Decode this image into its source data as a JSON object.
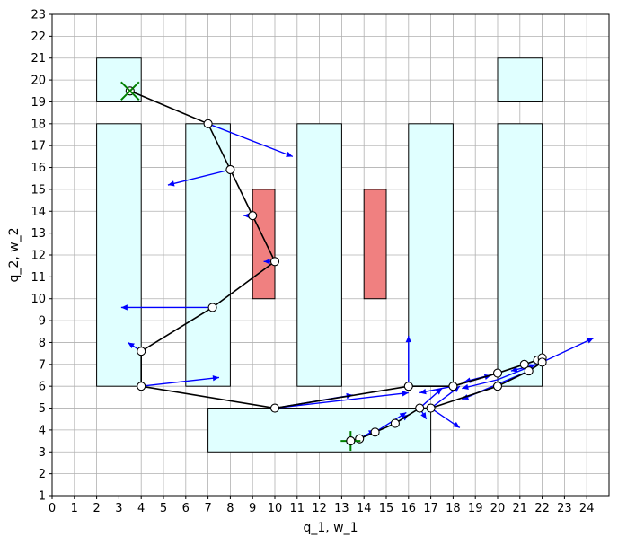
{
  "chart_data": {
    "type": "scatter",
    "title": "",
    "xlabel": "q_1, w_1",
    "ylabel": "q_2, w_2",
    "xlim": [
      0,
      25
    ],
    "ylim": [
      1,
      23
    ],
    "xticks": [
      0,
      1,
      2,
      3,
      4,
      5,
      6,
      7,
      8,
      9,
      10,
      11,
      12,
      13,
      14,
      15,
      16,
      17,
      18,
      19,
      20,
      21,
      22,
      23,
      24
    ],
    "yticks": [
      1,
      2,
      3,
      4,
      5,
      6,
      7,
      8,
      9,
      10,
      11,
      12,
      13,
      14,
      15,
      16,
      17,
      18,
      19,
      20,
      21,
      22,
      23
    ],
    "grid": true,
    "colors": {
      "region": "#e0ffff",
      "obstacle": "#f08080",
      "path": "#000000",
      "arrow": "#0000ff",
      "marker": "#008000"
    },
    "regions": [
      {
        "x": [
          2,
          4
        ],
        "y": [
          19,
          21
        ]
      },
      {
        "x": [
          2,
          4
        ],
        "y": [
          6,
          18
        ]
      },
      {
        "x": [
          6,
          8
        ],
        "y": [
          6,
          18
        ]
      },
      {
        "x": [
          11,
          13
        ],
        "y": [
          6,
          18
        ]
      },
      {
        "x": [
          16,
          18
        ],
        "y": [
          6,
          18
        ]
      },
      {
        "x": [
          20,
          22
        ],
        "y": [
          19,
          21
        ]
      },
      {
        "x": [
          20,
          22
        ],
        "y": [
          6,
          18
        ]
      },
      {
        "x": [
          7,
          17
        ],
        "y": [
          3,
          5
        ]
      }
    ],
    "obstacles": [
      {
        "x": [
          9,
          10
        ],
        "y": [
          10,
          15
        ]
      },
      {
        "x": [
          14,
          15
        ],
        "y": [
          10,
          15
        ]
      }
    ],
    "path": [
      [
        3.5,
        19.5
      ],
      [
        7,
        18
      ],
      [
        8,
        15.9
      ],
      [
        9,
        13.8
      ],
      [
        10,
        11.7
      ],
      [
        7.2,
        9.6
      ],
      [
        4,
        7.6
      ],
      [
        4,
        6
      ],
      [
        10,
        5
      ],
      [
        16,
        6
      ],
      [
        18,
        6
      ],
      [
        20,
        6.6
      ],
      [
        21.2,
        7
      ],
      [
        21.8,
        7.2
      ],
      [
        22,
        7.3
      ],
      [
        22,
        7.1
      ],
      [
        21.4,
        6.7
      ],
      [
        20,
        6
      ],
      [
        17,
        5
      ],
      [
        16.5,
        5
      ],
      [
        15.4,
        4.3
      ],
      [
        14.5,
        3.9
      ],
      [
        13.8,
        3.6
      ],
      [
        13.4,
        3.5
      ]
    ],
    "arrows": [
      {
        "x": 7,
        "y": 18,
        "dx": 3.8,
        "dy": -1.5
      },
      {
        "x": 8,
        "y": 15.9,
        "dx": -2.8,
        "dy": -0.7
      },
      {
        "x": 9,
        "y": 13.8,
        "dx": -0.4,
        "dy": 0
      },
      {
        "x": 10,
        "y": 11.7,
        "dx": -0.5,
        "dy": 0
      },
      {
        "x": 7.2,
        "y": 9.6,
        "dx": -4.1,
        "dy": 0
      },
      {
        "x": 4,
        "y": 7.6,
        "dx": -0.6,
        "dy": 0.4
      },
      {
        "x": 4,
        "y": 6,
        "dx": 3.5,
        "dy": 0.4
      },
      {
        "x": 10,
        "y": 5,
        "dx": 6,
        "dy": 0.7
      },
      {
        "x": 10,
        "y": 5,
        "dx": 3.5,
        "dy": 0.6
      },
      {
        "x": 16,
        "y": 6,
        "dx": 0,
        "dy": 2.3
      },
      {
        "x": 18,
        "y": 6,
        "dx": 1.7,
        "dy": 0.5
      },
      {
        "x": 17,
        "y": 5,
        "dx": 1.3,
        "dy": 1
      },
      {
        "x": 17,
        "y": 5,
        "dx": 1.3,
        "dy": -0.9
      },
      {
        "x": 16.5,
        "y": 5,
        "dx": 1,
        "dy": 0.9
      },
      {
        "x": 16.5,
        "y": 5,
        "dx": 0.3,
        "dy": -0.5
      },
      {
        "x": 18,
        "y": 6,
        "dx": -1.5,
        "dy": -0.3
      },
      {
        "x": 20,
        "y": 6.6,
        "dx": -1.5,
        "dy": -0.4
      },
      {
        "x": 21.8,
        "y": 7,
        "dx": -1.2,
        "dy": -0.3
      },
      {
        "x": 22,
        "y": 7.1,
        "dx": 2.3,
        "dy": 1.1
      },
      {
        "x": 21.4,
        "y": 6.7,
        "dx": -3,
        "dy": -1.3
      },
      {
        "x": 20,
        "y": 6.3,
        "dx": -1.6,
        "dy": -0.4
      },
      {
        "x": 20,
        "y": 6.3,
        "dx": 1.7,
        "dy": 0.7
      },
      {
        "x": 15.4,
        "y": 4.3,
        "dx": 0.6,
        "dy": 0.4
      },
      {
        "x": 14.5,
        "y": 3.9,
        "dx": 1.4,
        "dy": 0.9
      },
      {
        "x": 13.8,
        "y": 3.6,
        "dx": 0.7,
        "dy": 0.4
      }
    ],
    "start_marker": {
      "x": 3.5,
      "y": 19.5,
      "style": "x"
    },
    "goal_marker": {
      "x": 13.4,
      "y": 3.5,
      "style": "+"
    }
  }
}
